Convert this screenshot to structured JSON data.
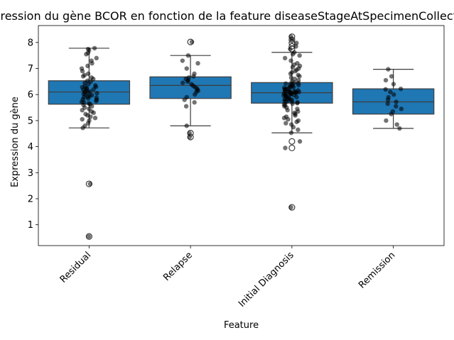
{
  "chart_data": {
    "type": "box",
    "title": "Expression du gène BCOR en fonction de la feature diseaseStageAtSpecimenCollection",
    "xlabel": "Feature",
    "ylabel": "Expression du gène",
    "ylim": [
      0.2,
      8.65
    ],
    "yticks": [
      1,
      2,
      3,
      4,
      5,
      6,
      7,
      8
    ],
    "categories": [
      "Residual",
      "Relapse",
      "Initial Diagnosis",
      "Remission"
    ],
    "box_color": "#1f77b4",
    "point_color": "#000000",
    "boxes": [
      {
        "q1": 5.63,
        "median": 6.1,
        "q3": 6.53,
        "whisker_low": 4.72,
        "whisker_high": 7.78,
        "outliers": [
          2.57,
          0.55
        ]
      },
      {
        "q1": 5.85,
        "median": 6.35,
        "q3": 6.68,
        "whisker_low": 4.8,
        "whisker_high": 7.5,
        "outliers": [
          8.02,
          4.52,
          4.37
        ]
      },
      {
        "q1": 5.67,
        "median": 6.07,
        "q3": 6.46,
        "whisker_low": 4.53,
        "whisker_high": 7.62,
        "outliers": [
          8.22,
          8.1,
          7.98,
          7.85,
          7.75,
          4.2,
          3.95,
          1.67
        ]
      },
      {
        "q1": 5.25,
        "median": 5.72,
        "q3": 6.22,
        "whisker_low": 4.7,
        "whisker_high": 6.97,
        "outliers": []
      }
    ],
    "points": [
      [
        0.55,
        2.57,
        4.72,
        4.8,
        4.9,
        5.0,
        5.05,
        5.1,
        5.15,
        5.2,
        5.25,
        5.3,
        5.35,
        5.4,
        5.45,
        5.5,
        5.55,
        5.6,
        5.63,
        5.66,
        5.7,
        5.72,
        5.75,
        5.8,
        5.82,
        5.85,
        5.88,
        5.9,
        5.92,
        5.95,
        5.98,
        6.0,
        6.02,
        6.05,
        6.08,
        6.1,
        6.12,
        6.15,
        6.18,
        6.2,
        6.22,
        6.25,
        6.28,
        6.3,
        6.32,
        6.35,
        6.4,
        6.45,
        6.5,
        6.53,
        6.6,
        6.65,
        6.7,
        6.75,
        6.8,
        6.9,
        7.0,
        7.1,
        7.2,
        7.3,
        7.4,
        7.55,
        7.6,
        7.7,
        7.75,
        7.78
      ],
      [
        4.37,
        4.52,
        4.8,
        5.55,
        5.7,
        5.8,
        5.9,
        6.0,
        6.1,
        6.15,
        6.2,
        6.25,
        6.3,
        6.35,
        6.4,
        6.45,
        6.5,
        6.55,
        6.6,
        6.65,
        6.7,
        6.8,
        7.0,
        7.2,
        7.3,
        7.5,
        8.02
      ],
      [
        1.67,
        3.95,
        4.2,
        4.53,
        4.65,
        4.75,
        4.85,
        4.9,
        4.95,
        5.0,
        5.05,
        5.1,
        5.15,
        5.2,
        5.25,
        5.3,
        5.35,
        5.4,
        5.45,
        5.5,
        5.55,
        5.6,
        5.62,
        5.65,
        5.67,
        5.7,
        5.72,
        5.74,
        5.76,
        5.78,
        5.8,
        5.82,
        5.84,
        5.86,
        5.88,
        5.9,
        5.92,
        5.94,
        5.96,
        5.98,
        6.0,
        6.01,
        6.02,
        6.03,
        6.04,
        6.05,
        6.06,
        6.07,
        6.08,
        6.09,
        6.1,
        6.11,
        6.12,
        6.13,
        6.14,
        6.15,
        6.16,
        6.18,
        6.2,
        6.22,
        6.24,
        6.26,
        6.28,
        6.3,
        6.32,
        6.34,
        6.36,
        6.38,
        6.4,
        6.42,
        6.44,
        6.46,
        6.5,
        6.55,
        6.6,
        6.65,
        6.7,
        6.75,
        6.8,
        6.85,
        6.9,
        6.95,
        7.0,
        7.05,
        7.1,
        7.15,
        7.2,
        7.3,
        7.4,
        7.5,
        7.55,
        7.62,
        7.75,
        7.85,
        7.98,
        8.1,
        8.22
      ],
      [
        4.7,
        4.85,
        5.0,
        5.25,
        5.35,
        5.45,
        5.55,
        5.65,
        5.72,
        5.8,
        5.9,
        6.0,
        6.1,
        6.2,
        6.22,
        6.4,
        6.55,
        6.7,
        6.97
      ]
    ]
  }
}
